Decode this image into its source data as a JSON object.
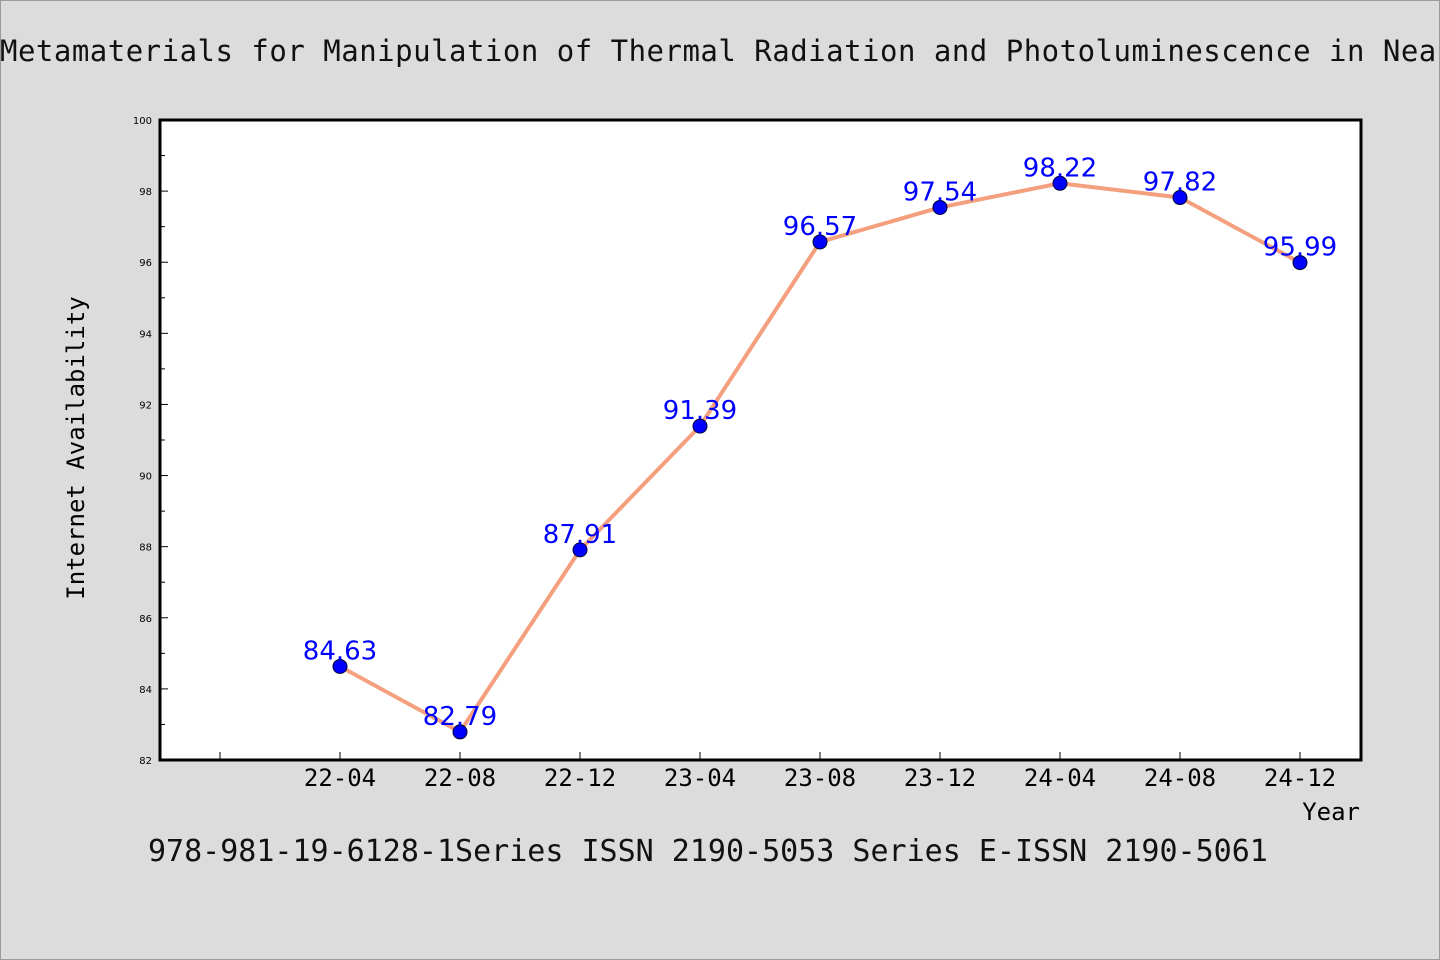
{
  "title": "Metamaterials for Manipulation of Thermal Radiation and Photoluminescence in Near",
  "footer": "978-981-19-6128-1Series ISSN 2190-5053 Series E-ISSN 2190-5061",
  "chart_data": {
    "type": "line",
    "title": "Metamaterials for Manipulation of Thermal Radiation and Photoluminescence in Near",
    "xlabel": "Year",
    "ylabel": "Internet Availability",
    "categories": [
      "22-04",
      "22-08",
      "22-12",
      "23-04",
      "23-08",
      "23-12",
      "24-04",
      "24-08",
      "24-12"
    ],
    "series": [
      {
        "values": [
          84.63,
          82.79,
          87.91,
          91.39,
          96.57,
          97.54,
          98.22,
          97.82,
          95.99
        ],
        "labels": [
          "84.63",
          "82.79",
          "87.91",
          "91.39",
          "96.57",
          "97.54",
          "98.22",
          "97.82",
          "95.99"
        ]
      }
    ],
    "ylim": [
      82,
      100
    ],
    "yticks": [
      "82",
      "84",
      "86",
      "88",
      "90",
      "92",
      "94",
      "96",
      "98",
      "100"
    ],
    "grid": false,
    "legend": "none",
    "colors": {
      "line": "#f4a07e",
      "marker": "#0000ff",
      "label": "#0000ff",
      "background": "#dcdcdc",
      "plot_bg": "#ffffff"
    }
  }
}
